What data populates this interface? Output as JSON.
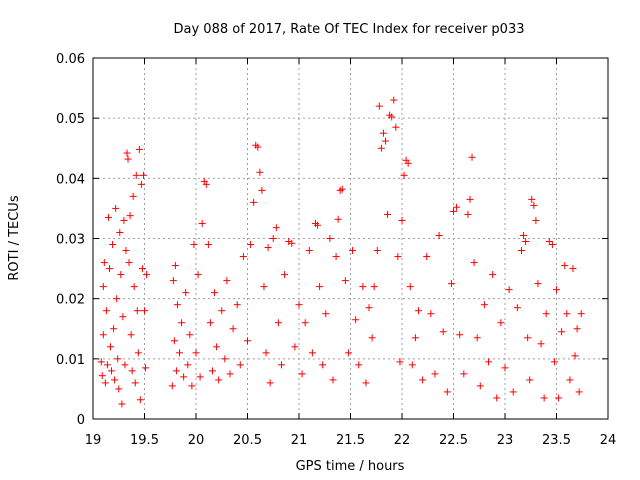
{
  "chart_data": {
    "type": "scatter",
    "title": "Day 088 of 2017, Rate Of TEC Index for receiver p033",
    "xlabel": "GPS time / hours",
    "ylabel": "ROTI / TECUs",
    "xlim": [
      19,
      24
    ],
    "ylim": [
      0,
      0.06
    ],
    "xticks": [
      19,
      19.5,
      20,
      20.5,
      21,
      21.5,
      22,
      22.5,
      23,
      23.5,
      24
    ],
    "xtick_labels": [
      "19",
      "19.5",
      "20",
      "20.5",
      "21",
      "21.5",
      "22",
      "22.5",
      "23",
      "23.5",
      "24"
    ],
    "yticks": [
      0,
      0.01,
      0.02,
      0.03,
      0.04,
      0.05,
      0.06
    ],
    "ytick_labels": [
      "0",
      "0.01",
      "0.02",
      "0.03",
      "0.04",
      "0.05",
      "0.06"
    ],
    "grid": true,
    "marker": "+",
    "color": "#ff0000",
    "series": [
      {
        "name": "ROTI",
        "points": [
          [
            19.08,
            0.0095
          ],
          [
            19.09,
            0.0072
          ],
          [
            19.1,
            0.014
          ],
          [
            19.1,
            0.022
          ],
          [
            19.11,
            0.026
          ],
          [
            19.12,
            0.006
          ],
          [
            19.13,
            0.018
          ],
          [
            19.14,
            0.009
          ],
          [
            19.15,
            0.0335
          ],
          [
            19.16,
            0.025
          ],
          [
            19.17,
            0.012
          ],
          [
            19.18,
            0.008
          ],
          [
            19.19,
            0.029
          ],
          [
            19.2,
            0.015
          ],
          [
            19.21,
            0.0065
          ],
          [
            19.22,
            0.035
          ],
          [
            19.23,
            0.02
          ],
          [
            19.24,
            0.01
          ],
          [
            19.25,
            0.005
          ],
          [
            19.26,
            0.031
          ],
          [
            19.27,
            0.024
          ],
          [
            19.28,
            0.0025
          ],
          [
            19.29,
            0.017
          ],
          [
            19.3,
            0.033
          ],
          [
            19.31,
            0.009
          ],
          [
            19.32,
            0.028
          ],
          [
            19.33,
            0.0442
          ],
          [
            19.34,
            0.0432
          ],
          [
            19.35,
            0.026
          ],
          [
            19.36,
            0.0338
          ],
          [
            19.37,
            0.014
          ],
          [
            19.38,
            0.008
          ],
          [
            19.39,
            0.037
          ],
          [
            19.4,
            0.022
          ],
          [
            19.41,
            0.006
          ],
          [
            19.42,
            0.0405
          ],
          [
            19.43,
            0.018
          ],
          [
            19.44,
            0.011
          ],
          [
            19.45,
            0.0448
          ],
          [
            19.46,
            0.0032
          ],
          [
            19.47,
            0.039
          ],
          [
            19.48,
            0.025
          ],
          [
            19.49,
            0.0405
          ],
          [
            19.5,
            0.018
          ],
          [
            19.51,
            0.0085
          ],
          [
            19.52,
            0.024
          ],
          [
            19.77,
            0.0055
          ],
          [
            19.78,
            0.023
          ],
          [
            19.79,
            0.013
          ],
          [
            19.8,
            0.0255
          ],
          [
            19.81,
            0.008
          ],
          [
            19.82,
            0.019
          ],
          [
            19.84,
            0.011
          ],
          [
            19.86,
            0.016
          ],
          [
            19.88,
            0.007
          ],
          [
            19.9,
            0.021
          ],
          [
            19.92,
            0.009
          ],
          [
            19.94,
            0.014
          ],
          [
            19.96,
            0.0055
          ],
          [
            19.98,
            0.029
          ],
          [
            20.0,
            0.011
          ],
          [
            20.02,
            0.024
          ],
          [
            20.04,
            0.007
          ],
          [
            20.06,
            0.0325
          ],
          [
            20.08,
            0.0395
          ],
          [
            20.1,
            0.039
          ],
          [
            20.12,
            0.029
          ],
          [
            20.14,
            0.016
          ],
          [
            20.16,
            0.008
          ],
          [
            20.18,
            0.021
          ],
          [
            20.2,
            0.012
          ],
          [
            20.22,
            0.0065
          ],
          [
            20.25,
            0.018
          ],
          [
            20.28,
            0.01
          ],
          [
            20.3,
            0.023
          ],
          [
            20.33,
            0.0075
          ],
          [
            20.36,
            0.015
          ],
          [
            20.4,
            0.019
          ],
          [
            20.43,
            0.009
          ],
          [
            20.46,
            0.027
          ],
          [
            20.5,
            0.013
          ],
          [
            20.53,
            0.029
          ],
          [
            20.56,
            0.036
          ],
          [
            20.58,
            0.0455
          ],
          [
            20.6,
            0.0452
          ],
          [
            20.62,
            0.041
          ],
          [
            20.64,
            0.038
          ],
          [
            20.66,
            0.022
          ],
          [
            20.68,
            0.011
          ],
          [
            20.7,
            0.0285
          ],
          [
            20.72,
            0.006
          ],
          [
            20.75,
            0.03
          ],
          [
            20.78,
            0.0318
          ],
          [
            20.8,
            0.016
          ],
          [
            20.83,
            0.009
          ],
          [
            20.86,
            0.024
          ],
          [
            20.9,
            0.0295
          ],
          [
            20.93,
            0.0292
          ],
          [
            20.96,
            0.012
          ],
          [
            21.0,
            0.019
          ],
          [
            21.03,
            0.0075
          ],
          [
            21.06,
            0.016
          ],
          [
            21.1,
            0.028
          ],
          [
            21.13,
            0.011
          ],
          [
            21.16,
            0.0325
          ],
          [
            21.18,
            0.0322
          ],
          [
            21.2,
            0.022
          ],
          [
            21.23,
            0.009
          ],
          [
            21.26,
            0.0175
          ],
          [
            21.3,
            0.03
          ],
          [
            21.33,
            0.0065
          ],
          [
            21.36,
            0.027
          ],
          [
            21.38,
            0.0332
          ],
          [
            21.4,
            0.038
          ],
          [
            21.42,
            0.0382
          ],
          [
            21.45,
            0.023
          ],
          [
            21.48,
            0.011
          ],
          [
            21.52,
            0.028
          ],
          [
            21.55,
            0.0165
          ],
          [
            21.58,
            0.009
          ],
          [
            21.62,
            0.022
          ],
          [
            21.65,
            0.006
          ],
          [
            21.68,
            0.0185
          ],
          [
            21.71,
            0.0135
          ],
          [
            21.73,
            0.022
          ],
          [
            21.76,
            0.028
          ],
          [
            21.78,
            0.052
          ],
          [
            21.8,
            0.045
          ],
          [
            21.82,
            0.0475
          ],
          [
            21.84,
            0.0462
          ],
          [
            21.86,
            0.034
          ],
          [
            21.88,
            0.0505
          ],
          [
            21.9,
            0.0502
          ],
          [
            21.92,
            0.053
          ],
          [
            21.94,
            0.0485
          ],
          [
            21.96,
            0.027
          ],
          [
            21.98,
            0.0095
          ],
          [
            22.0,
            0.033
          ],
          [
            22.02,
            0.0405
          ],
          [
            22.04,
            0.043
          ],
          [
            22.06,
            0.0425
          ],
          [
            22.08,
            0.022
          ],
          [
            22.1,
            0.009
          ],
          [
            22.13,
            0.0135
          ],
          [
            22.16,
            0.018
          ],
          [
            22.2,
            0.0065
          ],
          [
            22.24,
            0.027
          ],
          [
            22.28,
            0.0175
          ],
          [
            22.32,
            0.0075
          ],
          [
            22.36,
            0.0305
          ],
          [
            22.4,
            0.0145
          ],
          [
            22.44,
            0.0045
          ],
          [
            22.48,
            0.0225
          ],
          [
            22.5,
            0.0345
          ],
          [
            22.53,
            0.0352
          ],
          [
            22.56,
            0.014
          ],
          [
            22.6,
            0.0075
          ],
          [
            22.64,
            0.034
          ],
          [
            22.66,
            0.0365
          ],
          [
            22.68,
            0.0435
          ],
          [
            22.7,
            0.026
          ],
          [
            22.73,
            0.0135
          ],
          [
            22.76,
            0.0055
          ],
          [
            22.8,
            0.019
          ],
          [
            22.84,
            0.0095
          ],
          [
            22.88,
            0.024
          ],
          [
            22.92,
            0.0035
          ],
          [
            22.96,
            0.016
          ],
          [
            23.0,
            0.0085
          ],
          [
            23.04,
            0.0215
          ],
          [
            23.08,
            0.0045
          ],
          [
            23.12,
            0.0185
          ],
          [
            23.16,
            0.028
          ],
          [
            23.18,
            0.0305
          ],
          [
            23.2,
            0.0295
          ],
          [
            23.22,
            0.0135
          ],
          [
            23.24,
            0.0065
          ],
          [
            23.26,
            0.0365
          ],
          [
            23.28,
            0.0355
          ],
          [
            23.3,
            0.033
          ],
          [
            23.32,
            0.0225
          ],
          [
            23.35,
            0.0125
          ],
          [
            23.38,
            0.0035
          ],
          [
            23.4,
            0.0175
          ],
          [
            23.43,
            0.0295
          ],
          [
            23.46,
            0.029
          ],
          [
            23.48,
            0.0095
          ],
          [
            23.5,
            0.0215
          ],
          [
            23.52,
            0.0035
          ],
          [
            23.55,
            0.0145
          ],
          [
            23.58,
            0.0255
          ],
          [
            23.6,
            0.0175
          ],
          [
            23.63,
            0.0065
          ],
          [
            23.66,
            0.025
          ],
          [
            23.68,
            0.0105
          ],
          [
            23.7,
            0.015
          ],
          [
            23.72,
            0.0045
          ],
          [
            23.74,
            0.0175
          ]
        ]
      }
    ]
  }
}
